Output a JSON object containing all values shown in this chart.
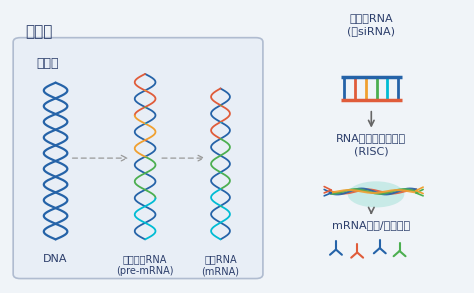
{
  "bg_color": "#f0f4f8",
  "box_bg": "#e8eef6",
  "box_border": "#b0bcd0",
  "title_cytoplasm": "细胞质",
  "title_nucleus": "细胞核",
  "label_dna": "DNA",
  "label_premrna": "前体信使RNA\n(pre-mRNA)",
  "label_mrna": "信使RNA\n(mRNA)",
  "right_label1": "短双链RNA\n(如siRNA)",
  "right_label2": "RNA诱导沉默复合体\n(RISC)",
  "right_label3": "mRNA降解/翻译抑制",
  "text_color": "#2c3e6b",
  "blue": "#2563a8",
  "red": "#e05c3a",
  "green": "#4caf50",
  "orange": "#f0a030",
  "cyan": "#00bcd4",
  "gray_arrow": "#999999",
  "risc_bg": "#80d8c8",
  "font_size_big": 10,
  "font_size_med": 8,
  "font_size_small": 7
}
